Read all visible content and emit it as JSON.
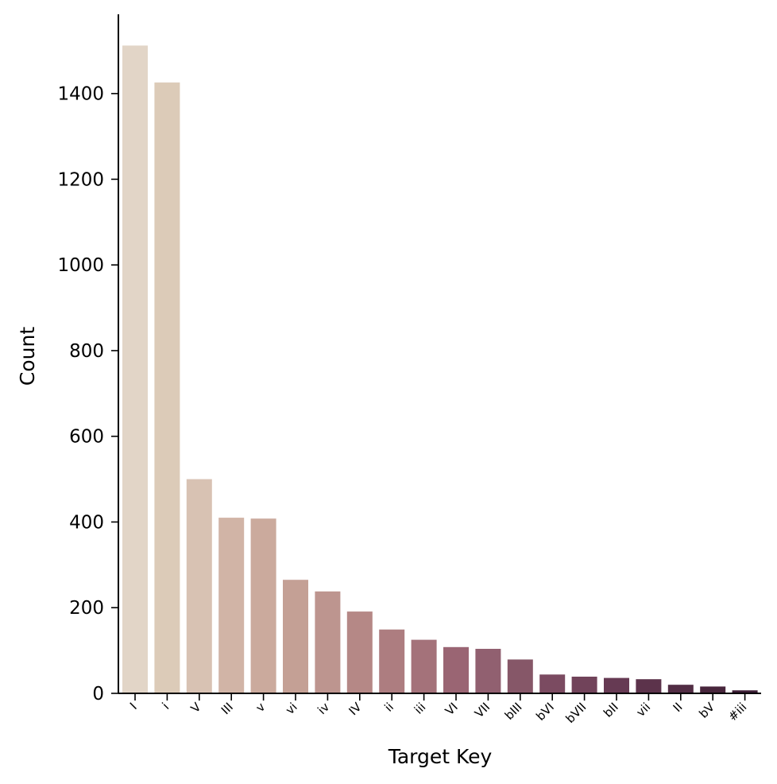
{
  "chart_data": {
    "type": "bar",
    "xlabel": "Target Key",
    "ylabel": "Count",
    "ylim": [
      0,
      1585
    ],
    "yticks": [
      0,
      200,
      400,
      600,
      800,
      1000,
      1200,
      1400
    ],
    "categories": [
      "I",
      "i",
      "V",
      "III",
      "v",
      "vi",
      "iv",
      "IV",
      "ii",
      "iii",
      "VI",
      "VII",
      "bIII",
      "bVI",
      "bVII",
      "bII",
      "vii",
      "II",
      "bV",
      "#iii"
    ],
    "values": [
      1512,
      1426,
      500,
      410,
      408,
      265,
      238,
      191,
      149,
      125,
      108,
      104,
      79,
      44,
      39,
      36,
      33,
      20,
      16,
      7
    ],
    "colors": [
      "#e2d5c7",
      "#dccbb8",
      "#d8c2b3",
      "#d1b4a6",
      "#cbaa9d",
      "#c4a095",
      "#bd958f",
      "#b58886",
      "#ad7d80",
      "#a4727a",
      "#9a6573",
      "#916070",
      "#865768",
      "#7b4b61",
      "#71435a",
      "#663a53",
      "#5c334b",
      "#522d44",
      "#48263c",
      "#3e1f36"
    ],
    "grid": false,
    "legend": "none"
  }
}
